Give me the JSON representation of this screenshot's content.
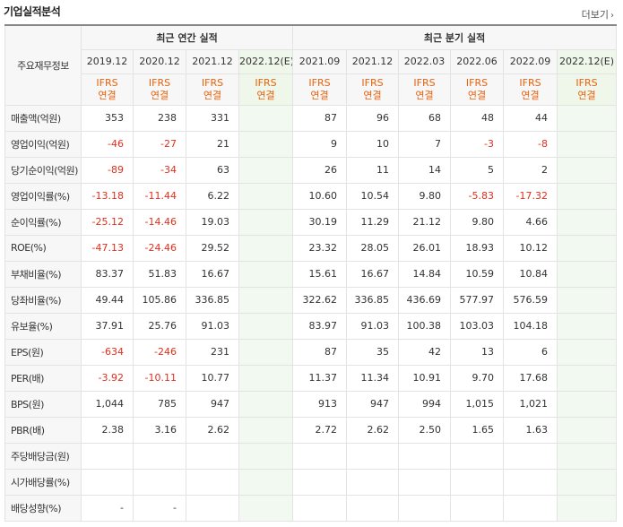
{
  "header": {
    "title": "기업실적분석",
    "more_label": "더보기"
  },
  "table": {
    "row_header_label": "주요재무정보",
    "annual_label": "최근 연간 실적",
    "quarterly_label": "최근 분기 실적",
    "periods": [
      {
        "label": "2019.12",
        "std": "IFRS",
        "basis": "연결",
        "estimate": false
      },
      {
        "label": "2020.12",
        "std": "IFRS",
        "basis": "연결",
        "estimate": false
      },
      {
        "label": "2021.12",
        "std": "IFRS",
        "basis": "연결",
        "estimate": false
      },
      {
        "label": "2022.12(E)",
        "std": "IFRS",
        "basis": "연결",
        "estimate": true
      },
      {
        "label": "2021.09",
        "std": "IFRS",
        "basis": "연결",
        "estimate": false
      },
      {
        "label": "2021.12",
        "std": "IFRS",
        "basis": "연결",
        "estimate": false
      },
      {
        "label": "2022.03",
        "std": "IFRS",
        "basis": "연결",
        "estimate": false
      },
      {
        "label": "2022.06",
        "std": "IFRS",
        "basis": "연결",
        "estimate": false
      },
      {
        "label": "2022.09",
        "std": "IFRS",
        "basis": "연결",
        "estimate": false
      },
      {
        "label": "2022.12(E)",
        "std": "IFRS",
        "basis": "연결",
        "estimate": true
      }
    ],
    "groups": [
      [
        {
          "label": "매출액(억원)",
          "values": [
            "353",
            "238",
            "331",
            "",
            "87",
            "96",
            "68",
            "48",
            "44",
            ""
          ]
        },
        {
          "label": "영업이익(억원)",
          "values": [
            "-46",
            "-27",
            "21",
            "",
            "9",
            "10",
            "7",
            "-3",
            "-8",
            ""
          ]
        },
        {
          "label": "당기순이익(억원)",
          "values": [
            "-89",
            "-34",
            "63",
            "",
            "26",
            "11",
            "14",
            "5",
            "2",
            ""
          ]
        }
      ],
      [
        {
          "label": "영업이익률(%)",
          "values": [
            "-13.18",
            "-11.44",
            "6.22",
            "",
            "10.60",
            "10.54",
            "9.80",
            "-5.83",
            "-17.32",
            ""
          ]
        },
        {
          "label": "순이익률(%)",
          "values": [
            "-25.12",
            "-14.46",
            "19.03",
            "",
            "30.19",
            "11.29",
            "21.12",
            "9.80",
            "4.66",
            ""
          ]
        },
        {
          "label": "ROE(%)",
          "values": [
            "-47.13",
            "-24.46",
            "29.52",
            "",
            "23.32",
            "28.05",
            "26.01",
            "18.93",
            "10.12",
            ""
          ]
        }
      ],
      [
        {
          "label": "부채비율(%)",
          "values": [
            "83.37",
            "51.83",
            "16.67",
            "",
            "15.61",
            "16.67",
            "14.84",
            "10.59",
            "10.84",
            ""
          ]
        },
        {
          "label": "당좌비율(%)",
          "values": [
            "49.44",
            "105.86",
            "336.85",
            "",
            "322.62",
            "336.85",
            "436.69",
            "577.97",
            "576.59",
            ""
          ]
        },
        {
          "label": "유보율(%)",
          "values": [
            "37.91",
            "25.76",
            "91.03",
            "",
            "83.97",
            "91.03",
            "100.38",
            "103.03",
            "104.18",
            ""
          ]
        }
      ],
      [
        {
          "label": "EPS(원)",
          "values": [
            "-634",
            "-246",
            "231",
            "",
            "87",
            "35",
            "42",
            "13",
            "6",
            ""
          ]
        },
        {
          "label": "PER(배)",
          "values": [
            "-3.92",
            "-10.11",
            "10.77",
            "",
            "11.37",
            "11.34",
            "10.91",
            "9.70",
            "17.68",
            ""
          ]
        },
        {
          "label": "BPS(원)",
          "values": [
            "1,044",
            "785",
            "947",
            "",
            "913",
            "947",
            "994",
            "1,015",
            "1,021",
            ""
          ]
        },
        {
          "label": "PBR(배)",
          "values": [
            "2.38",
            "3.16",
            "2.62",
            "",
            "2.72",
            "2.62",
            "2.50",
            "1.65",
            "1.63",
            ""
          ]
        }
      ],
      [
        {
          "label": "주당배당금(원)",
          "values": [
            "",
            "",
            "",
            "",
            "",
            "",
            "",
            "",
            "",
            ""
          ]
        },
        {
          "label": "시가배당률(%)",
          "values": [
            "",
            "",
            "",
            "",
            "",
            "",
            "",
            "",
            "",
            ""
          ]
        },
        {
          "label": "배당성향(%)",
          "values": [
            "-",
            "-",
            "",
            "",
            "",
            "",
            "",
            "",
            "",
            ""
          ]
        }
      ]
    ]
  }
}
